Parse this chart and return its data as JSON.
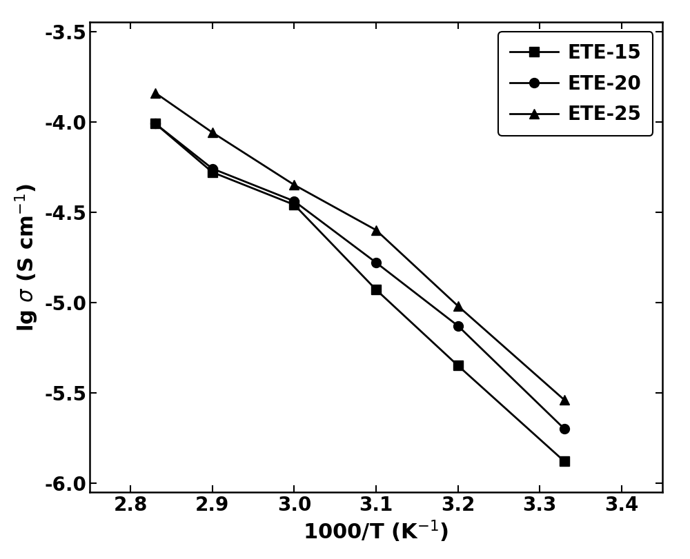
{
  "series": [
    {
      "label": "ETE-15",
      "marker": "s",
      "x": [
        2.83,
        2.9,
        3.0,
        3.1,
        3.2,
        3.33
      ],
      "y": [
        -4.01,
        -4.28,
        -4.46,
        -4.93,
        -5.35,
        -5.88
      ]
    },
    {
      "label": "ETE-20",
      "marker": "o",
      "x": [
        2.83,
        2.9,
        3.0,
        3.1,
        3.2,
        3.33
      ],
      "y": [
        -4.01,
        -4.26,
        -4.44,
        -4.78,
        -5.13,
        -5.7
      ]
    },
    {
      "label": "ETE-25",
      "marker": "^",
      "x": [
        2.83,
        2.9,
        3.0,
        3.1,
        3.2,
        3.33
      ],
      "y": [
        -3.84,
        -4.06,
        -4.35,
        -4.6,
        -5.02,
        -5.54
      ]
    }
  ],
  "xlabel": "1000/T (K-1)",
  "ylabel": "lg σ (S cm-1)",
  "xlim": [
    2.75,
    3.45
  ],
  "ylim": [
    -6.05,
    -3.45
  ],
  "xticks": [
    2.8,
    2.9,
    3.0,
    3.1,
    3.2,
    3.3,
    3.4
  ],
  "yticks": [
    -6.0,
    -5.5,
    -5.0,
    -4.5,
    -4.0,
    -3.5
  ],
  "line_color": "#000000",
  "marker_color": "#000000",
  "marker_size": 10,
  "linewidth": 2.0,
  "legend_fontsize": 20,
  "axis_fontsize": 22,
  "tick_fontsize": 20
}
